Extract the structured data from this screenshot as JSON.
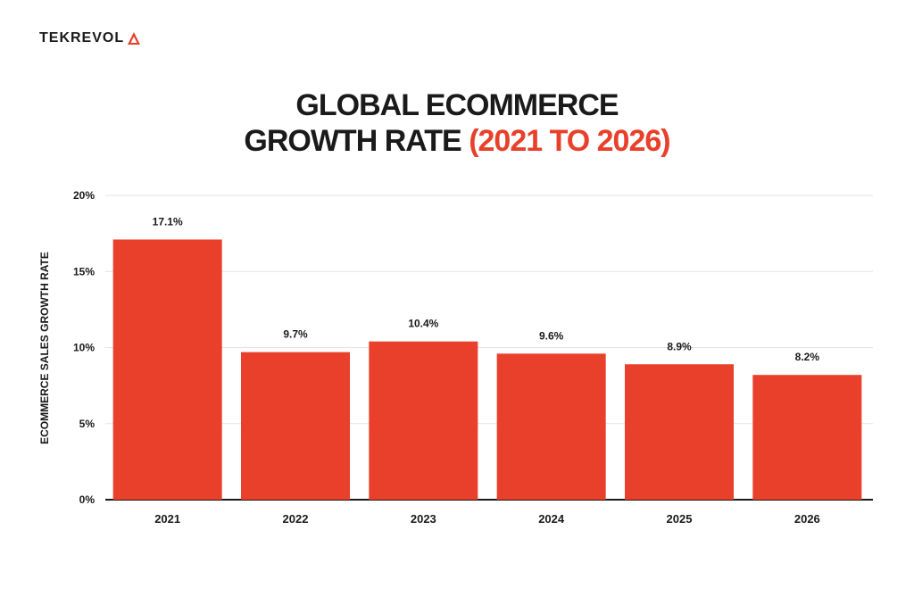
{
  "brand": {
    "name": "TEKREVOL",
    "accent_color": "#e8402a"
  },
  "title": {
    "line1": "GLOBAL ECOMMERCE",
    "line2_main": "GROWTH RATE ",
    "line2_accent": "(2021 TO 2026)"
  },
  "chart_data": {
    "type": "bar",
    "categories": [
      "2021",
      "2022",
      "2023",
      "2024",
      "2025",
      "2026"
    ],
    "values": [
      17.1,
      9.7,
      10.4,
      9.6,
      8.9,
      8.2
    ],
    "data_labels": [
      "17.1%",
      "9.7%",
      "10.4%",
      "9.6%",
      "8.9%",
      "8.2%"
    ],
    "ylabel": "ECOMMERCE SALES GROWTH RATE",
    "xlabel": "",
    "ylim": [
      0,
      20
    ],
    "yticks": [
      0,
      5,
      10,
      15,
      20
    ],
    "ytick_labels": [
      "0%",
      "5%",
      "10%",
      "15%",
      "20%"
    ],
    "grid": true,
    "bar_color": "#e8402a"
  }
}
